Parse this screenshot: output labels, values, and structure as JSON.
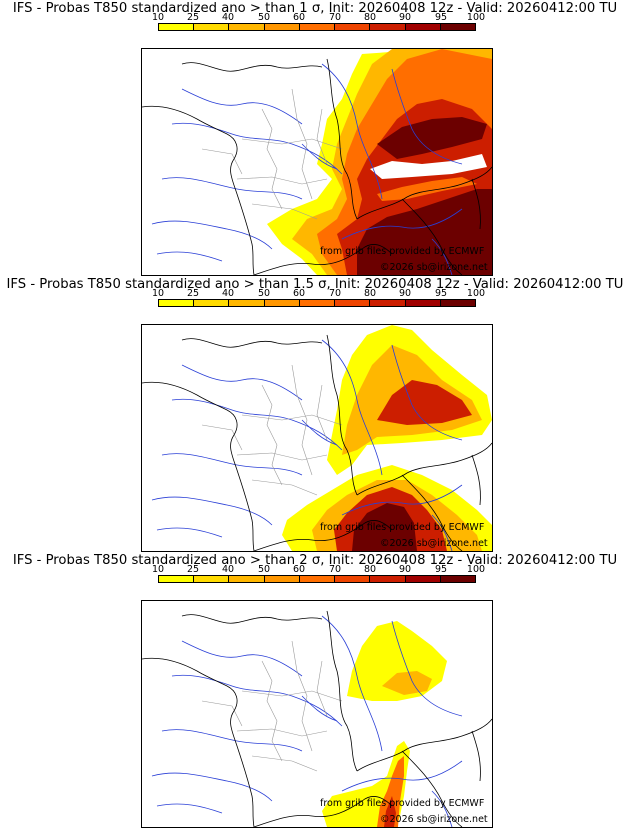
{
  "colorbar": {
    "ticks": [
      "10",
      "25",
      "40",
      "50",
      "60",
      "70",
      "80",
      "90",
      "95",
      "100"
    ],
    "colors": [
      "#ffff00",
      "#ffdb00",
      "#ffb700",
      "#ff9600",
      "#ff6e00",
      "#ee4400",
      "#cc1e00",
      "#a00000",
      "#6c0000"
    ]
  },
  "panels": [
    {
      "title": "IFS - Probas T850  standardized ano > than 1 σ, Init: 20260408 12z - Valid: 20260412:00 TU",
      "credit_source": "from grib files provided by ECMWF",
      "credit_copyright": "©2026 sb@irizone.net"
    },
    {
      "title": "IFS - Probas T850  standardized ano > than 1.5 σ, Init: 20260408 12z - Valid: 20260412:00 TU",
      "credit_source": "from grib files provided by ECMWF",
      "credit_copyright": "©2026 sb@irizone.net"
    },
    {
      "title": "IFS - Probas T850  standardized ano > than 2 σ, Init: 20260408 12z - Valid: 20260412:00 TU",
      "credit_source": "from grib files provided by ECMWF",
      "credit_copyright": "©2026 sb@irizone.net"
    }
  ]
}
